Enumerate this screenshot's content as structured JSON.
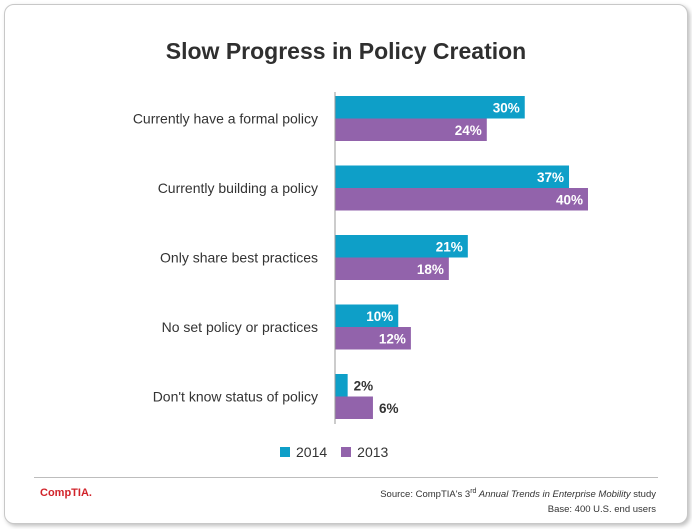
{
  "logo": "CompTIA.",
  "source": {
    "prefix": "Source: CompTIA's ",
    "ordinal": "3",
    "ordinal_sup": "rd",
    "italic_title": " Annual Trends in Enterprise Mobility",
    "suffix": " study",
    "base": "Base: 400 U.S. end users"
  },
  "colors": {
    "series_2014": "#0e9fc8",
    "series_2013": "#9263ab"
  },
  "chart_data": {
    "type": "bar",
    "orientation": "horizontal",
    "title": "Slow Progress in Policy Creation",
    "categories": [
      "Currently have a formal policy",
      "Currently building a policy",
      "Only share best practices",
      "No set policy or practices",
      "Don't know status of policy"
    ],
    "series": [
      {
        "name": "2014",
        "values": [
          30,
          37,
          21,
          10,
          2
        ],
        "labels": [
          "30%",
          "37%",
          "21%",
          "10%",
          "2%"
        ]
      },
      {
        "name": "2013",
        "values": [
          24,
          40,
          18,
          12,
          6
        ],
        "labels": [
          "24%",
          "40%",
          "18%",
          "12%",
          "6%"
        ]
      }
    ],
    "xlim": [
      0,
      40
    ],
    "legend": "bottom-center",
    "grid": false
  }
}
